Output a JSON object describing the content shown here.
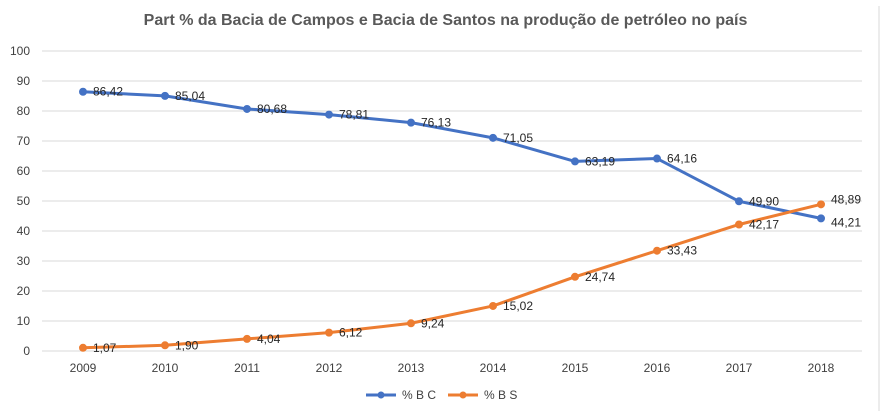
{
  "chart_data": {
    "type": "line",
    "title": "Part % da Bacia de Campos e Bacia de Santos na produção de petróleo no país",
    "xlabel": "",
    "ylabel": "",
    "categories": [
      "2009",
      "2010",
      "2011",
      "2012",
      "2013",
      "2014",
      "2015",
      "2016",
      "2017",
      "2018"
    ],
    "ylim": [
      0,
      100
    ],
    "yticks": [
      0,
      10,
      20,
      30,
      40,
      50,
      60,
      70,
      80,
      90,
      100
    ],
    "grid": true,
    "legend_position": "bottom",
    "series": [
      {
        "name": "% B C",
        "color": "#4472c4",
        "values": [
          86.42,
          85.04,
          80.68,
          78.81,
          76.13,
          71.05,
          63.19,
          64.16,
          49.9,
          44.21
        ],
        "labels": [
          "86,42",
          "85,04",
          "80,68",
          "78,81",
          "76,13",
          "71,05",
          "63,19",
          "64,16",
          "49,90",
          "44,21"
        ]
      },
      {
        "name": "% B S",
        "color": "#ed7d31",
        "values": [
          1.07,
          1.9,
          4.04,
          6.12,
          9.24,
          15.02,
          24.74,
          33.43,
          42.17,
          48.89
        ],
        "labels": [
          "1,07",
          "1,90",
          "4,04",
          "6,12",
          "9,24",
          "15,02",
          "24,74",
          "33,43",
          "42,17",
          "48,89"
        ]
      }
    ]
  }
}
